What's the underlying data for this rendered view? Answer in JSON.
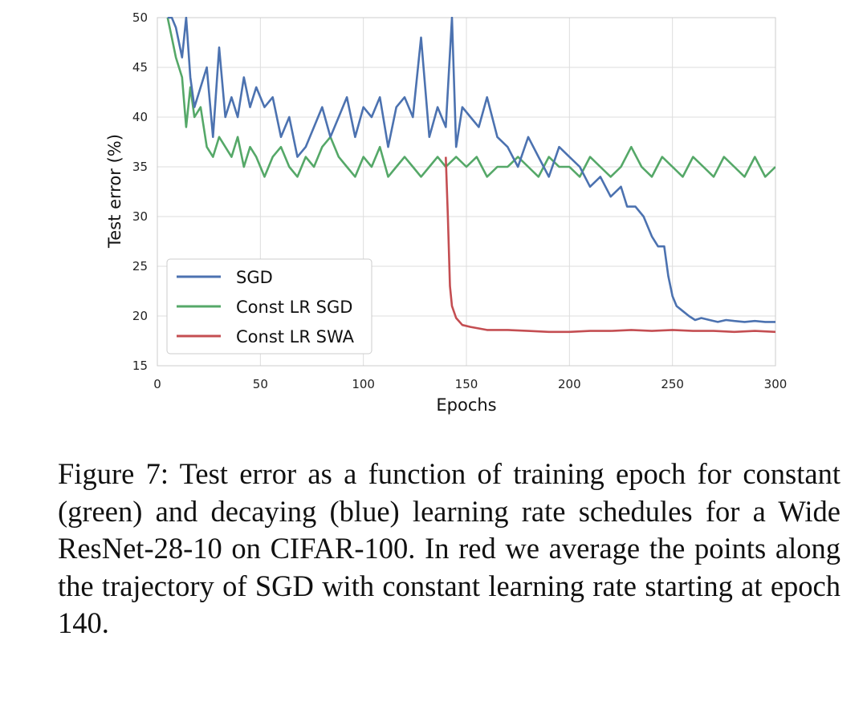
{
  "chart_data": {
    "type": "line",
    "title": "",
    "xlabel": "Epochs",
    "ylabel": "Test error (%)",
    "xlim": [
      0,
      300
    ],
    "ylim": [
      15,
      50
    ],
    "xticks": [
      "0",
      "50",
      "100",
      "150",
      "200",
      "250",
      "300"
    ],
    "yticks": [
      "15",
      "20",
      "25",
      "30",
      "35",
      "40",
      "45",
      "50"
    ],
    "grid": true,
    "legend_position": "lower-left",
    "series": [
      {
        "name": "SGD",
        "color": "#4c72b0",
        "x": [
          5,
          7,
          9,
          12,
          14,
          16,
          18,
          21,
          24,
          27,
          30,
          33,
          36,
          39,
          42,
          45,
          48,
          52,
          56,
          60,
          64,
          68,
          72,
          76,
          80,
          84,
          88,
          92,
          96,
          100,
          104,
          108,
          112,
          116,
          120,
          124,
          128,
          132,
          136,
          140,
          143,
          145,
          148,
          152,
          156,
          160,
          165,
          170,
          175,
          180,
          185,
          190,
          195,
          200,
          205,
          210,
          215,
          220,
          225,
          228,
          232,
          236,
          240,
          243,
          246,
          248,
          250,
          252,
          255,
          258,
          261,
          264,
          268,
          272,
          276,
          280,
          285,
          290,
          295,
          300
        ],
        "values": [
          50,
          50,
          49,
          46,
          50,
          44,
          41,
          43,
          45,
          38,
          47,
          40,
          42,
          40,
          44,
          41,
          43,
          41,
          42,
          38,
          40,
          36,
          37,
          39,
          41,
          38,
          40,
          42,
          38,
          41,
          40,
          42,
          37,
          41,
          42,
          40,
          48,
          38,
          41,
          39,
          50,
          37,
          41,
          40,
          39,
          42,
          38,
          37,
          35,
          38,
          36,
          34,
          37,
          36,
          35,
          33,
          34,
          32,
          33,
          31,
          31,
          30,
          28,
          27,
          27,
          24,
          22,
          21,
          20.5,
          20,
          19.6,
          19.8,
          19.6,
          19.4,
          19.6,
          19.5,
          19.4,
          19.5,
          19.4,
          19.4
        ]
      },
      {
        "name": "Const LR SGD",
        "color": "#55a868",
        "x": [
          5,
          7,
          9,
          12,
          14,
          16,
          18,
          21,
          24,
          27,
          30,
          33,
          36,
          39,
          42,
          45,
          48,
          52,
          56,
          60,
          64,
          68,
          72,
          76,
          80,
          84,
          88,
          92,
          96,
          100,
          104,
          108,
          112,
          116,
          120,
          124,
          128,
          132,
          136,
          140,
          145,
          150,
          155,
          160,
          165,
          170,
          175,
          180,
          185,
          190,
          195,
          200,
          205,
          210,
          215,
          220,
          225,
          230,
          235,
          240,
          245,
          250,
          255,
          260,
          265,
          270,
          275,
          280,
          285,
          290,
          295,
          300
        ],
        "values": [
          50,
          48,
          46,
          44,
          39,
          43,
          40,
          41,
          37,
          36,
          38,
          37,
          36,
          38,
          35,
          37,
          36,
          34,
          36,
          37,
          35,
          34,
          36,
          35,
          37,
          38,
          36,
          35,
          34,
          36,
          35,
          37,
          34,
          35,
          36,
          35,
          34,
          35,
          36,
          35,
          36,
          35,
          36,
          34,
          35,
          35,
          36,
          35,
          34,
          36,
          35,
          35,
          34,
          36,
          35,
          34,
          35,
          37,
          35,
          34,
          36,
          35,
          34,
          36,
          35,
          34,
          36,
          35,
          34,
          36,
          34,
          35
        ]
      },
      {
        "name": "Const LR SWA",
        "color": "#c44e52",
        "x": [
          140,
          141,
          142,
          143,
          145,
          148,
          152,
          160,
          170,
          180,
          190,
          200,
          210,
          220,
          230,
          240,
          250,
          260,
          270,
          280,
          290,
          300
        ],
        "values": [
          36,
          30,
          23,
          21,
          19.8,
          19.1,
          18.9,
          18.6,
          18.6,
          18.5,
          18.4,
          18.4,
          18.5,
          18.5,
          18.6,
          18.5,
          18.6,
          18.5,
          18.5,
          18.4,
          18.5,
          18.4
        ]
      }
    ]
  },
  "caption": "Figure 7: Test error as a function of training epoch for constant (green) and decaying (blue) learning rate schedules for a Wide ResNet-28-10 on CIFAR-100. In red we average the points along the trajectory of SGD with constant learning rate starting at epoch 140."
}
